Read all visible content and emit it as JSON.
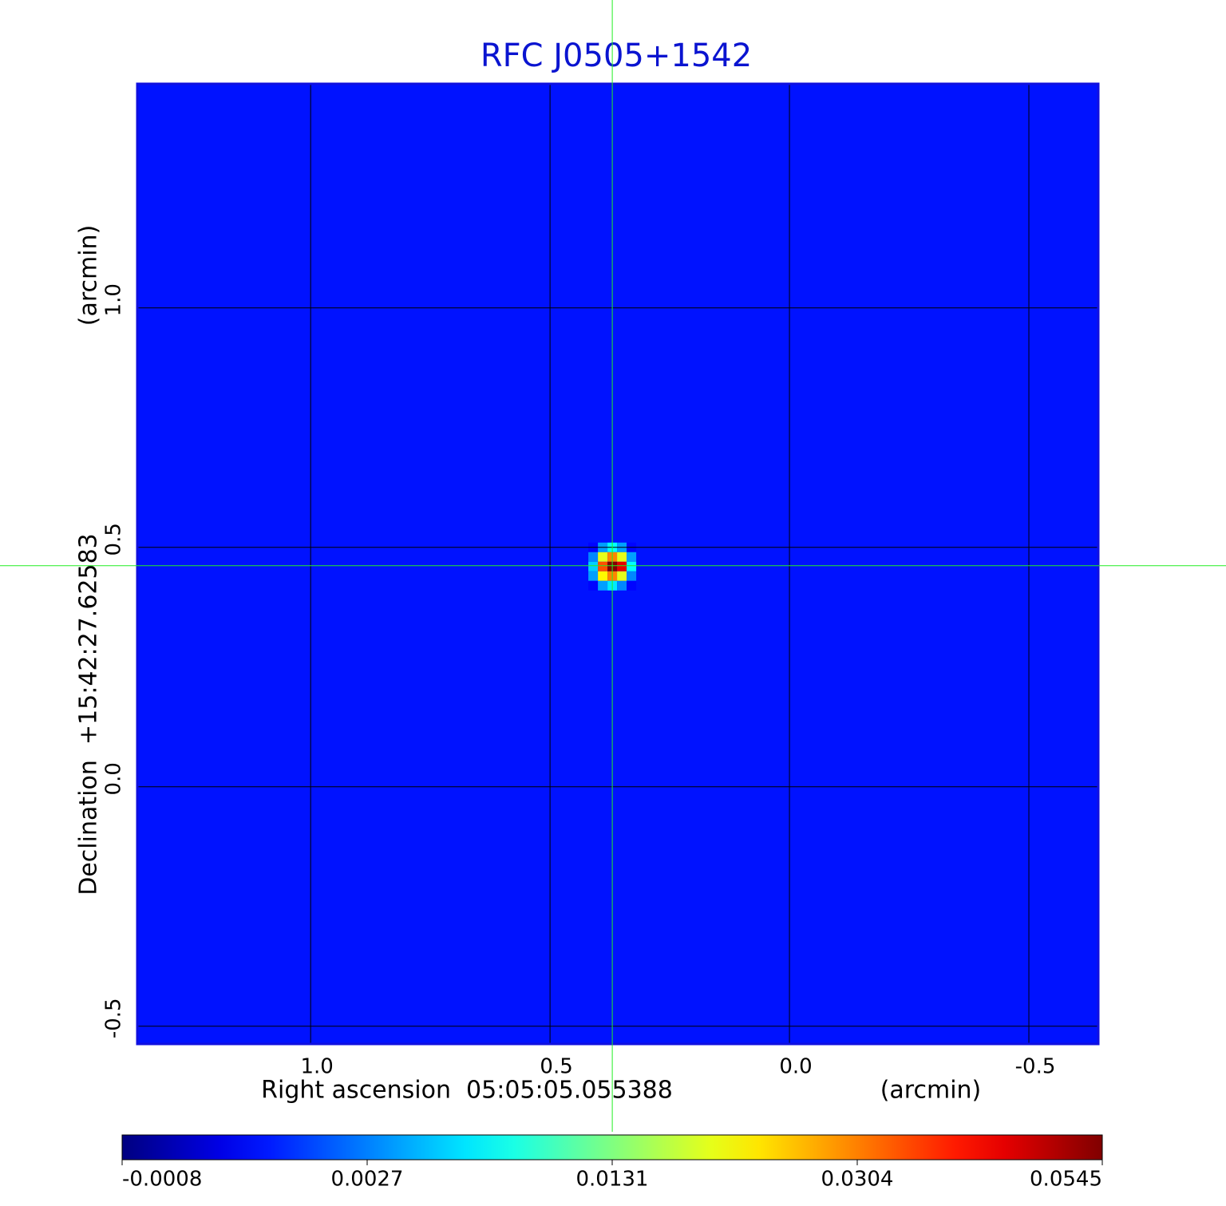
{
  "chart_data": {
    "type": "heatmap",
    "title": "RFC J0505+1542",
    "title_color": "#0a14d0",
    "x_label": "Right ascension  05:05:05.055388",
    "x_unit": "(arcmin)",
    "y_label": "Declination  +15:42:27.62583",
    "y_unit": "(arcmin)",
    "xlim": [
      1.362,
      -0.645
    ],
    "ylim": [
      -0.537,
      1.468
    ],
    "xticks": [
      {
        "value": 1,
        "label": "1.0"
      },
      0.5,
      {
        "value": 0,
        "label": "0.0"
      },
      -0.5
    ],
    "yticks": [
      -0.5,
      {
        "value": 0,
        "label": "0.0"
      },
      0.5,
      {
        "value": 1,
        "label": "1.0"
      }
    ],
    "grid": true,
    "background_value": 0.0012,
    "x": [
      0.41,
      0.39,
      0.37,
      0.35,
      0.33
    ],
    "y": [
      0.5,
      0.48,
      0.46,
      0.44,
      0.42
    ],
    "values": [
      [
        0.001,
        0.004,
        0.008,
        0.004,
        0.001
      ],
      [
        0.003,
        0.02,
        0.03,
        0.02,
        0.004
      ],
      [
        0.006,
        0.035,
        0.0545,
        0.045,
        0.008
      ],
      [
        0.004,
        0.022,
        0.03,
        0.02,
        0.003
      ],
      [
        0.001,
        0.004,
        0.007,
        0.003,
        0.001
      ]
    ],
    "crosshair": {
      "x": 0.37,
      "y": 0.4617,
      "color": "#22ee22"
    },
    "colormap": "jet",
    "colorbar_ticks": [
      -0.0008,
      0.0027,
      0.0131,
      0.0304,
      0.0545
    ]
  }
}
